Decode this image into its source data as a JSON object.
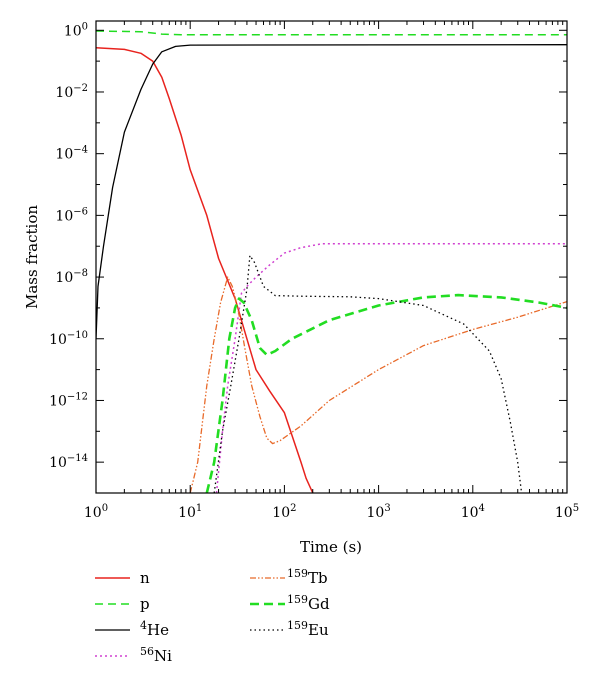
{
  "chart_data": {
    "type": "line",
    "xlabel": "Time (s)",
    "ylabel": "Mass fraction",
    "xscale": "log",
    "yscale": "log",
    "xlim": [
      1,
      100000
    ],
    "ylim": [
      1e-15,
      2
    ],
    "grid": false,
    "legend_position": "below",
    "x_ticks": [
      {
        "value": 1,
        "base": "10",
        "exp": "0"
      },
      {
        "value": 10,
        "base": "10",
        "exp": "1"
      },
      {
        "value": 100,
        "base": "10",
        "exp": "2"
      },
      {
        "value": 1000,
        "base": "10",
        "exp": "3"
      },
      {
        "value": 10000,
        "base": "10",
        "exp": "4"
      },
      {
        "value": 100000,
        "base": "10",
        "exp": "5"
      }
    ],
    "y_ticks": [
      {
        "value": 1,
        "base": "10",
        "exp": "0"
      },
      {
        "value": 0.01,
        "base": "10",
        "exp": "−2"
      },
      {
        "value": 0.0001,
        "base": "10",
        "exp": "−4"
      },
      {
        "value": 1e-06,
        "base": "10",
        "exp": "−6"
      },
      {
        "value": 1e-08,
        "base": "10",
        "exp": "−8"
      },
      {
        "value": 1e-10,
        "base": "10",
        "exp": "−10"
      },
      {
        "value": 1e-12,
        "base": "10",
        "exp": "−12"
      },
      {
        "value": 1e-14,
        "base": "10",
        "exp": "−14"
      }
    ],
    "series": [
      {
        "id": "n",
        "name": "n",
        "sup": "",
        "color": "#e8231e",
        "dash": "",
        "width": 1.5,
        "points": [
          [
            1,
            0.27
          ],
          [
            2,
            0.24
          ],
          [
            3,
            0.18
          ],
          [
            4,
            0.1
          ],
          [
            5,
            0.03
          ],
          [
            6,
            0.006
          ],
          [
            8,
            0.0004
          ],
          [
            10,
            3e-05
          ],
          [
            15,
            1e-06
          ],
          [
            20,
            4e-08
          ],
          [
            30,
            2e-09
          ],
          [
            40,
            1e-10
          ],
          [
            50,
            1e-11
          ],
          [
            70,
            2e-12
          ],
          [
            100,
            4e-13
          ],
          [
            150,
            1e-14
          ],
          [
            170,
            3e-15
          ],
          [
            200,
            1e-15
          ]
        ]
      },
      {
        "id": "p",
        "name": "p",
        "sup": "",
        "color": "#22dd22",
        "dash": "8,5",
        "width": 1.5,
        "points": [
          [
            1,
            0.95
          ],
          [
            3,
            0.9
          ],
          [
            5,
            0.75
          ],
          [
            8,
            0.72
          ],
          [
            100000,
            0.72
          ]
        ]
      },
      {
        "id": "he4",
        "name": "He",
        "sup": "4",
        "color": "#000000",
        "dash": "",
        "width": 1.3,
        "points": [
          [
            1,
            1e-10
          ],
          [
            1.05,
            5e-09
          ],
          [
            1.2,
            1e-07
          ],
          [
            1.5,
            8e-06
          ],
          [
            2,
            0.0005
          ],
          [
            3,
            0.012
          ],
          [
            4,
            0.08
          ],
          [
            5,
            0.2
          ],
          [
            7,
            0.3
          ],
          [
            10,
            0.33
          ],
          [
            100000,
            0.34
          ]
        ]
      },
      {
        "id": "ni56",
        "name": "Ni",
        "sup": "56",
        "color": "#d040d0",
        "dash": "2,3",
        "width": 1.5,
        "points": [
          [
            19,
            1e-15
          ],
          [
            22,
            1e-13
          ],
          [
            25,
            3e-12
          ],
          [
            30,
            1e-10
          ],
          [
            35,
            3e-09
          ],
          [
            40,
            5e-09
          ],
          [
            50,
            1e-08
          ],
          [
            70,
            2.5e-08
          ],
          [
            100,
            6e-08
          ],
          [
            150,
            9e-08
          ],
          [
            250,
            1.2e-07
          ],
          [
            100000,
            1.2e-07
          ]
        ]
      },
      {
        "id": "tb159",
        "name": "Tb",
        "sup": "159",
        "color": "#e86a2a",
        "dash": "6,2,1.5,2,1.5,2",
        "width": 1.3,
        "points": [
          [
            10,
            1e-15
          ],
          [
            12,
            1e-14
          ],
          [
            15,
            3e-12
          ],
          [
            18,
            1e-10
          ],
          [
            21,
            1.5e-09
          ],
          [
            25,
            1e-08
          ],
          [
            28,
            5e-09
          ],
          [
            32,
            1e-09
          ],
          [
            38,
            5e-11
          ],
          [
            45,
            3e-12
          ],
          [
            55,
            3e-13
          ],
          [
            65,
            6e-14
          ],
          [
            75,
            4e-14
          ],
          [
            90,
            5e-14
          ],
          [
            150,
            1.5e-13
          ],
          [
            300,
            1e-12
          ],
          [
            1000,
            1e-11
          ],
          [
            3000,
            6e-11
          ],
          [
            10000,
            2e-10
          ],
          [
            30000,
            5e-10
          ],
          [
            100000,
            1.6e-09
          ]
        ]
      },
      {
        "id": "gd159",
        "name": "Gd",
        "sup": "159",
        "color": "#22dd22",
        "dash": "9,5",
        "width": 2.6,
        "points": [
          [
            15,
            1e-15
          ],
          [
            18,
            1e-14
          ],
          [
            22,
            1e-12
          ],
          [
            26,
            1e-10
          ],
          [
            30,
            1e-09
          ],
          [
            33,
            2e-09
          ],
          [
            37,
            1.5e-09
          ],
          [
            45,
            4e-10
          ],
          [
            55,
            5e-11
          ],
          [
            65,
            3e-11
          ],
          [
            80,
            4e-11
          ],
          [
            120,
            1e-10
          ],
          [
            300,
            4e-10
          ],
          [
            1000,
            1.2e-09
          ],
          [
            3000,
            2.2e-09
          ],
          [
            7000,
            2.6e-09
          ],
          [
            20000,
            2.2e-09
          ],
          [
            50000,
            1.5e-09
          ],
          [
            100000,
            1e-09
          ]
        ]
      },
      {
        "id": "eu159",
        "name": "Eu",
        "sup": "159",
        "color": "#000000",
        "dash": "1.5,3",
        "width": 1.3,
        "points": [
          [
            18,
            1e-15
          ],
          [
            22,
            1e-13
          ],
          [
            27,
            3e-12
          ],
          [
            33,
            1e-10
          ],
          [
            40,
            4e-09
          ],
          [
            43,
            5e-08
          ],
          [
            48,
            3e-08
          ],
          [
            60,
            5e-09
          ],
          [
            80,
            2.5e-09
          ],
          [
            150,
            2.4e-09
          ],
          [
            500,
            2.3e-09
          ],
          [
            1000,
            2e-09
          ],
          [
            3000,
            1.2e-09
          ],
          [
            8000,
            3e-10
          ],
          [
            15000,
            4e-11
          ],
          [
            20000,
            5e-12
          ],
          [
            25000,
            2e-13
          ],
          [
            30000,
            1e-14
          ],
          [
            33000,
            1e-15
          ]
        ]
      }
    ]
  }
}
